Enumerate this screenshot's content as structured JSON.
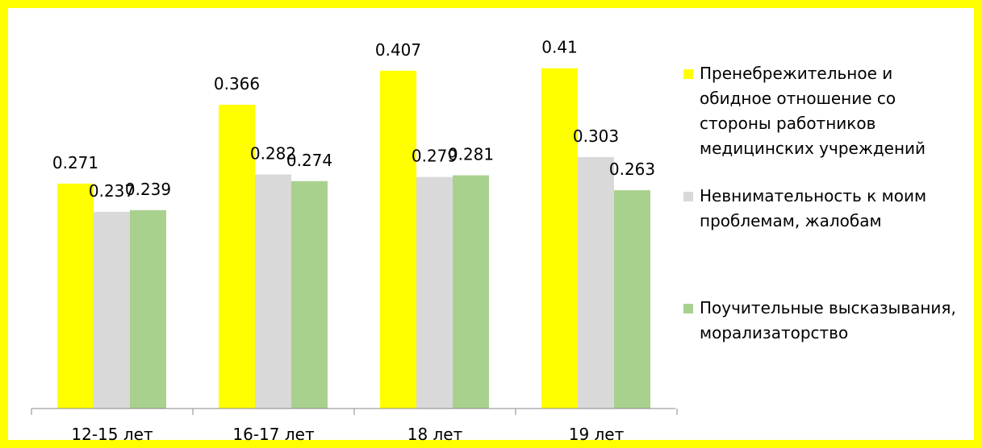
{
  "chart_data": {
    "type": "bar",
    "categories": [
      "12-15 лет",
      "16-17 лет",
      "18 лет",
      "19 лет"
    ],
    "series": [
      {
        "name": "Пренебрежительное и обидное отношение со стороны работников медицинских учреждений",
        "values": [
          0.271,
          0.366,
          0.407,
          0.41
        ],
        "labels": [
          "0.271",
          "0.366",
          "0.407",
          "0.41"
        ],
        "color": "#ffff00"
      },
      {
        "name": "Невнимательность к моим проблемам, жалобам",
        "values": [
          0.237,
          0.282,
          0.279,
          0.303
        ],
        "labels": [
          "0.237",
          "0.282",
          "0.279",
          "0.303"
        ],
        "color": "#d9d9d9"
      },
      {
        "name": "Поучительные высказывания, морализаторство",
        "values": [
          0.239,
          0.274,
          0.281,
          0.263
        ],
        "labels": [
          "0.239",
          "0.274",
          "0.281",
          "0.263"
        ],
        "color": "#a9d18e"
      }
    ],
    "ylim": [
      0,
      0.5
    ],
    "grid": false,
    "legend": "right",
    "frame_color": "#ffff00"
  },
  "legend": {
    "items": [
      {
        "label": "Пренебрежительное и обидное отношение со стороны работников медицинских учреждений",
        "color": "#ffff00"
      },
      {
        "label": "Невнимательность к моим проблемам, жалобам",
        "color": "#d9d9d9"
      },
      {
        "label": "Поучительные высказывания, морализаторство",
        "color": "#a9d18e"
      }
    ]
  }
}
